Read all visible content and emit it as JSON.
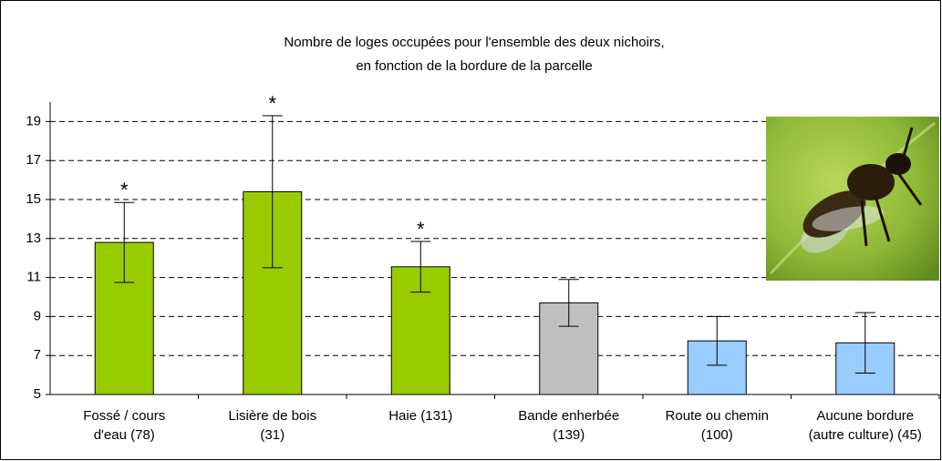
{
  "chart_data": {
    "type": "bar",
    "title": [
      "Nombre de loges occupées pour l'ensemble des deux nichoirs,",
      "en fonction de la bordure de la parcelle"
    ],
    "categories": [
      [
        "Fossé / cours",
        "d'eau (78)"
      ],
      [
        "Lisière de bois",
        "(31)"
      ],
      [
        "Haie (131)"
      ],
      [
        "Bande enherbée",
        "(139)"
      ],
      [
        "Route ou chemin",
        "(100)"
      ],
      [
        "Aucune bordure",
        "(autre culture) (45)"
      ]
    ],
    "values": [
      12.8,
      15.4,
      11.55,
      9.7,
      7.75,
      7.65
    ],
    "errors": [
      2.05,
      3.9,
      1.3,
      1.2,
      1.25,
      1.55
    ],
    "colors": [
      "#99cc00",
      "#99cc00",
      "#99cc00",
      "#c0c0c0",
      "#99ccff",
      "#99ccff"
    ],
    "annotations": [
      {
        "text": "*",
        "index": 0
      },
      {
        "text": "*",
        "index": 1
      },
      {
        "text": "*",
        "index": 2
      }
    ],
    "ylim": [
      5,
      20
    ],
    "yticks": [
      5,
      7,
      9,
      11,
      13,
      15,
      17,
      19
    ],
    "grid": true
  }
}
